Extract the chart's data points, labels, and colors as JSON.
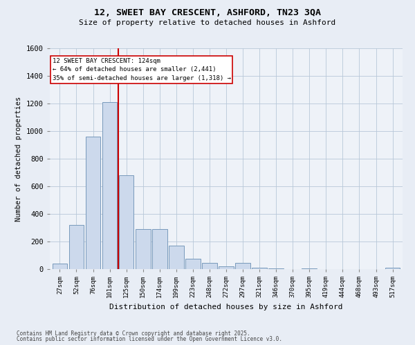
{
  "title1": "12, SWEET BAY CRESCENT, ASHFORD, TN23 3QA",
  "title2": "Size of property relative to detached houses in Ashford",
  "xlabel": "Distribution of detached houses by size in Ashford",
  "ylabel": "Number of detached properties",
  "bar_color": "#ccd9ec",
  "bar_edge_color": "#7799bb",
  "vline_color": "#cc0000",
  "categories": [
    "27sqm",
    "52sqm",
    "76sqm",
    "101sqm",
    "125sqm",
    "150sqm",
    "174sqm",
    "199sqm",
    "223sqm",
    "248sqm",
    "272sqm",
    "297sqm",
    "321sqm",
    "346sqm",
    "370sqm",
    "395sqm",
    "419sqm",
    "444sqm",
    "468sqm",
    "493sqm",
    "517sqm"
  ],
  "values": [
    40,
    320,
    960,
    1210,
    680,
    290,
    290,
    170,
    75,
    45,
    20,
    45,
    8,
    5,
    0,
    5,
    0,
    0,
    0,
    0,
    10
  ],
  "annotation_title": "12 SWEET BAY CRESCENT: 124sqm",
  "annotation_line1": "← 64% of detached houses are smaller (2,441)",
  "annotation_line2": "35% of semi-detached houses are larger (1,318) →",
  "ylim": [
    0,
    1600
  ],
  "yticks": [
    0,
    200,
    400,
    600,
    800,
    1000,
    1200,
    1400,
    1600
  ],
  "footer1": "Contains HM Land Registry data © Crown copyright and database right 2025.",
  "footer2": "Contains public sector information licensed under the Open Government Licence v3.0.",
  "bg_color": "#e8edf5",
  "plot_bg_color": "#eef2f8"
}
